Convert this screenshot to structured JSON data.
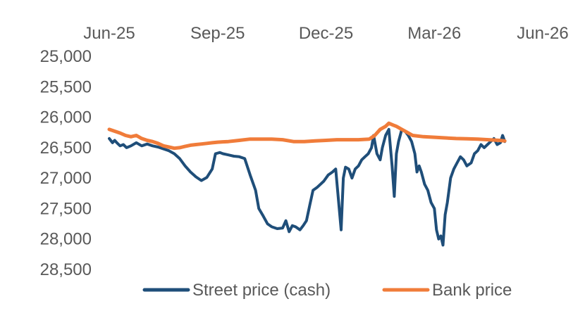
{
  "chart_data": {
    "type": "line",
    "title": "",
    "xlabel": "",
    "ylabel": "",
    "x_axis": {
      "position": "top",
      "ticks": [
        "Jun-25",
        "Sep-25",
        "Dec-25",
        "Mar-26",
        "Jun-26"
      ]
    },
    "y_axis": {
      "reversed": true,
      "ylim": [
        25000,
        28500
      ],
      "ticks": [
        25000,
        25500,
        26000,
        26500,
        27000,
        27500,
        28000,
        28500
      ],
      "tick_labels": [
        "25,000",
        "25,500",
        "26,000",
        "26,500",
        "27,000",
        "27,500",
        "28,000",
        "28,500"
      ]
    },
    "grid": false,
    "legend_position": "bottom",
    "series": [
      {
        "name": "Street price (cash)",
        "color": "#1F4E79",
        "points": [
          [
            0.0,
            26350
          ],
          [
            0.03,
            26420
          ],
          [
            0.05,
            26380
          ],
          [
            0.07,
            26420
          ],
          [
            0.1,
            26470
          ],
          [
            0.13,
            26450
          ],
          [
            0.16,
            26500
          ],
          [
            0.2,
            26470
          ],
          [
            0.25,
            26420
          ],
          [
            0.3,
            26470
          ],
          [
            0.35,
            26440
          ],
          [
            0.4,
            26470
          ],
          [
            0.45,
            26490
          ],
          [
            0.5,
            26520
          ],
          [
            0.55,
            26550
          ],
          [
            0.6,
            26600
          ],
          [
            0.65,
            26680
          ],
          [
            0.7,
            26800
          ],
          [
            0.75,
            26900
          ],
          [
            0.8,
            26980
          ],
          [
            0.85,
            27040
          ],
          [
            0.9,
            26990
          ],
          [
            0.95,
            26850
          ],
          [
            0.98,
            26600
          ],
          [
            1.02,
            26580
          ],
          [
            1.05,
            26600
          ],
          [
            1.1,
            26620
          ],
          [
            1.15,
            26640
          ],
          [
            1.2,
            26650
          ],
          [
            1.25,
            26680
          ],
          [
            1.3,
            26950
          ],
          [
            1.35,
            27200
          ],
          [
            1.38,
            27500
          ],
          [
            1.42,
            27620
          ],
          [
            1.46,
            27750
          ],
          [
            1.5,
            27800
          ],
          [
            1.55,
            27830
          ],
          [
            1.6,
            27820
          ],
          [
            1.63,
            27700
          ],
          [
            1.66,
            27880
          ],
          [
            1.69,
            27780
          ],
          [
            1.72,
            27800
          ],
          [
            1.76,
            27850
          ],
          [
            1.79,
            27780
          ],
          [
            1.82,
            27700
          ],
          [
            1.85,
            27450
          ],
          [
            1.88,
            27200
          ],
          [
            1.92,
            27150
          ],
          [
            1.95,
            27100
          ],
          [
            1.98,
            27050
          ],
          [
            2.02,
            26950
          ],
          [
            2.06,
            26900
          ],
          [
            2.09,
            26850
          ],
          [
            2.12,
            27450
          ],
          [
            2.14,
            27850
          ],
          [
            2.16,
            27000
          ],
          [
            2.18,
            26820
          ],
          [
            2.21,
            26850
          ],
          [
            2.24,
            27000
          ],
          [
            2.27,
            26850
          ],
          [
            2.3,
            26800
          ],
          [
            2.33,
            26700
          ],
          [
            2.36,
            26650
          ],
          [
            2.39,
            26600
          ],
          [
            2.42,
            26500
          ],
          [
            2.44,
            26300
          ],
          [
            2.47,
            26600
          ],
          [
            2.5,
            26700
          ],
          [
            2.52,
            26500
          ],
          [
            2.55,
            26300
          ],
          [
            2.58,
            26200
          ],
          [
            2.61,
            26800
          ],
          [
            2.63,
            27300
          ],
          [
            2.65,
            26600
          ],
          [
            2.67,
            26400
          ],
          [
            2.7,
            26200
          ],
          [
            2.73,
            26230
          ],
          [
            2.76,
            26300
          ],
          [
            2.79,
            26400
          ],
          [
            2.82,
            26600
          ],
          [
            2.84,
            26900
          ],
          [
            2.86,
            26800
          ],
          [
            2.88,
            26900
          ],
          [
            2.91,
            27100
          ],
          [
            2.94,
            27200
          ],
          [
            2.97,
            27400
          ],
          [
            3.0,
            27500
          ],
          [
            3.02,
            27850
          ],
          [
            3.04,
            28000
          ],
          [
            3.06,
            27950
          ],
          [
            3.08,
            28100
          ],
          [
            3.1,
            27600
          ],
          [
            3.12,
            27400
          ],
          [
            3.15,
            27000
          ],
          [
            3.18,
            26850
          ],
          [
            3.21,
            26750
          ],
          [
            3.24,
            26650
          ],
          [
            3.27,
            26700
          ],
          [
            3.3,
            26800
          ],
          [
            3.34,
            26750
          ],
          [
            3.37,
            26600
          ],
          [
            3.4,
            26550
          ],
          [
            3.43,
            26450
          ],
          [
            3.46,
            26500
          ],
          [
            3.49,
            26450
          ],
          [
            3.52,
            26400
          ],
          [
            3.55,
            26350
          ],
          [
            3.58,
            26450
          ],
          [
            3.61,
            26420
          ],
          [
            3.63,
            26300
          ],
          [
            3.65,
            26400
          ]
        ]
      },
      {
        "name": "Bank price",
        "color": "#F07C3A",
        "points": [
          [
            0.0,
            26200
          ],
          [
            0.05,
            26230
          ],
          [
            0.1,
            26260
          ],
          [
            0.15,
            26300
          ],
          [
            0.2,
            26320
          ],
          [
            0.25,
            26300
          ],
          [
            0.3,
            26350
          ],
          [
            0.35,
            26380
          ],
          [
            0.4,
            26400
          ],
          [
            0.45,
            26430
          ],
          [
            0.5,
            26470
          ],
          [
            0.55,
            26490
          ],
          [
            0.6,
            26510
          ],
          [
            0.65,
            26500
          ],
          [
            0.7,
            26480
          ],
          [
            0.75,
            26460
          ],
          [
            0.8,
            26450
          ],
          [
            0.85,
            26440
          ],
          [
            0.9,
            26430
          ],
          [
            0.95,
            26420
          ],
          [
            1.0,
            26410
          ],
          [
            1.05,
            26405
          ],
          [
            1.1,
            26400
          ],
          [
            1.2,
            26380
          ],
          [
            1.3,
            26360
          ],
          [
            1.4,
            26360
          ],
          [
            1.5,
            26360
          ],
          [
            1.6,
            26370
          ],
          [
            1.7,
            26400
          ],
          [
            1.8,
            26400
          ],
          [
            1.9,
            26390
          ],
          [
            2.0,
            26380
          ],
          [
            2.1,
            26370
          ],
          [
            2.2,
            26370
          ],
          [
            2.3,
            26370
          ],
          [
            2.4,
            26360
          ],
          [
            2.45,
            26300
          ],
          [
            2.5,
            26200
          ],
          [
            2.55,
            26150
          ],
          [
            2.58,
            26100
          ],
          [
            2.62,
            26130
          ],
          [
            2.65,
            26150
          ],
          [
            2.7,
            26200
          ],
          [
            2.75,
            26250
          ],
          [
            2.8,
            26300
          ],
          [
            2.9,
            26320
          ],
          [
            3.0,
            26330
          ],
          [
            3.1,
            26340
          ],
          [
            3.2,
            26350
          ],
          [
            3.3,
            26355
          ],
          [
            3.4,
            26360
          ],
          [
            3.5,
            26370
          ],
          [
            3.6,
            26380
          ],
          [
            3.65,
            26390
          ]
        ]
      }
    ]
  }
}
